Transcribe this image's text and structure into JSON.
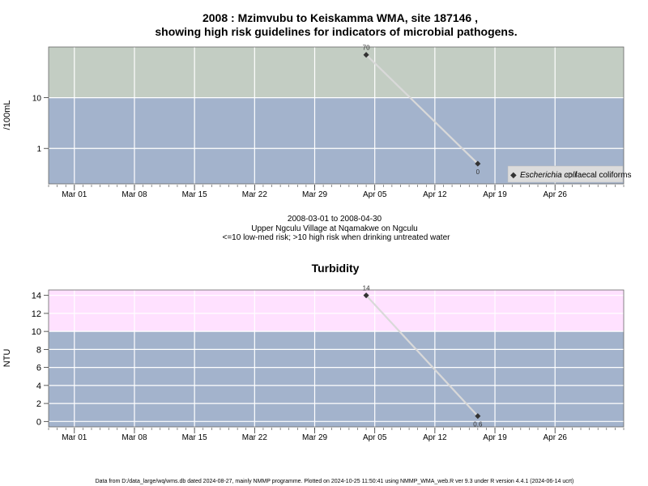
{
  "page": {
    "title_line1": "2008 : Mzimvubu to Keiskamma WMA, site 187146 ,",
    "title_line2": "showing high risk guidelines for indicators of microbial pathogens.",
    "subtitle_line1": "2008-03-01 to 2008-04-30",
    "subtitle_line2": "Upper Ngculu Village at Nqamakwe on Ngculu",
    "subtitle_line3": "<=10 low-med risk; >10 high risk when drinking untreated water",
    "footer": "Data from D:/data_large/wq/wms.db dated 2024-08-27, mainly NMMP programme. Plotted on 2024-10-25 11:50:41 using NMMP_WMA_web.R ver 9.3 under R version 4.4.1 (2024-06-14 ucrt)"
  },
  "colors": {
    "low_band": "#a3b3cc",
    "top_band_micro": "#c3cdc3",
    "top_band_turb": "#ffe1ff",
    "grid": "#ffffff",
    "series_line": "#d9d9d9",
    "marker": "#333333"
  },
  "chart_data": [
    {
      "type": "line",
      "title": "",
      "ylabel": "/100mL",
      "yscale": "log",
      "ylim": [
        0.2,
        100
      ],
      "yticks": [
        1,
        10
      ],
      "ytick_labels": [
        "1",
        "10"
      ],
      "guideline": 10,
      "x_range": [
        "2008-02-27",
        "2008-05-04"
      ],
      "x_ticks": [
        "2008-03-01",
        "2008-03-08",
        "2008-03-15",
        "2008-03-22",
        "2008-03-29",
        "2008-04-05",
        "2008-04-12",
        "2008-04-19",
        "2008-04-26"
      ],
      "x_tick_labels": [
        "Mar 01",
        "Mar 08",
        "Mar 15",
        "Mar 22",
        "Mar 29",
        "Apr 05",
        "Apr 12",
        "Apr 19",
        "Apr 26"
      ],
      "series": [
        {
          "name": "Escherichia coli",
          "x": [
            "2008-04-04",
            "2008-04-17"
          ],
          "y": [
            70,
            0.5
          ],
          "labels": [
            "70",
            "0"
          ]
        }
      ],
      "legend": {
        "position": "bottom-right",
        "items": [
          "Escherichia coli",
          "faecal coliforms"
        ]
      }
    },
    {
      "type": "line",
      "title": "Turbidity",
      "ylabel": "NTU",
      "yscale": "linear",
      "ylim": [
        -0.6,
        14.6
      ],
      "yticks": [
        0,
        2,
        4,
        6,
        8,
        10,
        12,
        14
      ],
      "ytick_labels": [
        "0",
        "2",
        "4",
        "6",
        "8",
        "10",
        "12",
        "14"
      ],
      "guideline": 10,
      "x_range": [
        "2008-02-27",
        "2008-05-04"
      ],
      "x_ticks": [
        "2008-03-01",
        "2008-03-08",
        "2008-03-15",
        "2008-03-22",
        "2008-03-29",
        "2008-04-05",
        "2008-04-12",
        "2008-04-19",
        "2008-04-26"
      ],
      "x_tick_labels": [
        "Mar 01",
        "Mar 08",
        "Mar 15",
        "Mar 22",
        "Mar 29",
        "Apr 05",
        "Apr 12",
        "Apr 19",
        "Apr 26"
      ],
      "series": [
        {
          "x": [
            "2008-04-04",
            "2008-04-17"
          ],
          "y": [
            14,
            0.6
          ],
          "labels": [
            "14",
            "0.6"
          ]
        }
      ]
    }
  ]
}
